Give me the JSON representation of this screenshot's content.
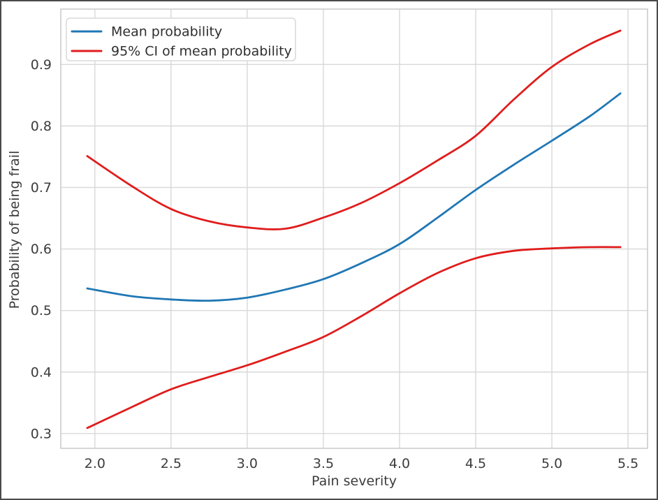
{
  "figure": {
    "background": "#ffffff",
    "border_color": "#4a4a4a"
  },
  "chart_data": {
    "type": "line",
    "title": "",
    "xlabel": "Pain severity",
    "ylabel": "Probability of being frail",
    "xlim": [
      1.776,
      5.628
    ],
    "ylim": [
      0.276,
      0.99
    ],
    "xticks": [
      2.0,
      2.5,
      3.0,
      3.5,
      4.0,
      4.5,
      5.0,
      5.5
    ],
    "xtick_labels": [
      "2.0",
      "2.5",
      "3.0",
      "3.5",
      "4.0",
      "4.5",
      "5.0",
      "5.5"
    ],
    "yticks": [
      0.3,
      0.4,
      0.5,
      0.6,
      0.7,
      0.8,
      0.9
    ],
    "ytick_labels": [
      "0.3",
      "0.4",
      "0.5",
      "0.6",
      "0.7",
      "0.8",
      "0.9"
    ],
    "grid": true,
    "legend": {
      "position": "upper left",
      "entries": [
        {
          "label": "Mean probability",
          "color": "#1f77b4"
        },
        {
          "label": "95% CI of mean probability",
          "color": "#e01c1c"
        }
      ]
    },
    "x": [
      1.95,
      2.25,
      2.5,
      2.75,
      3.0,
      3.25,
      3.5,
      3.75,
      4.0,
      4.25,
      4.5,
      4.75,
      5.0,
      5.25,
      5.45
    ],
    "series": [
      {
        "name": "95% CI upper bound",
        "color": "#e01c1c",
        "values": [
          0.751,
          0.701,
          0.665,
          0.645,
          0.635,
          0.633,
          0.651,
          0.675,
          0.707,
          0.744,
          0.784,
          0.843,
          0.896,
          0.933,
          0.955
        ]
      },
      {
        "name": "95% CI lower bound",
        "color": "#e01c1c",
        "values": [
          0.309,
          0.344,
          0.372,
          0.392,
          0.411,
          0.433,
          0.457,
          0.491,
          0.528,
          0.561,
          0.585,
          0.597,
          0.601,
          0.603,
          0.603
        ]
      },
      {
        "name": "Mean probability",
        "color": "#1f77b4",
        "values": [
          0.536,
          0.523,
          0.518,
          0.516,
          0.521,
          0.534,
          0.551,
          0.577,
          0.608,
          0.651,
          0.696,
          0.737,
          0.776,
          0.816,
          0.853
        ]
      }
    ],
    "colors": {
      "grid": "#d8d8d8",
      "spine": "#c9c9c9",
      "text": "#3c3c3c",
      "legend_text": "#2f2f2f",
      "legend_border": "#d8d8d8"
    }
  }
}
